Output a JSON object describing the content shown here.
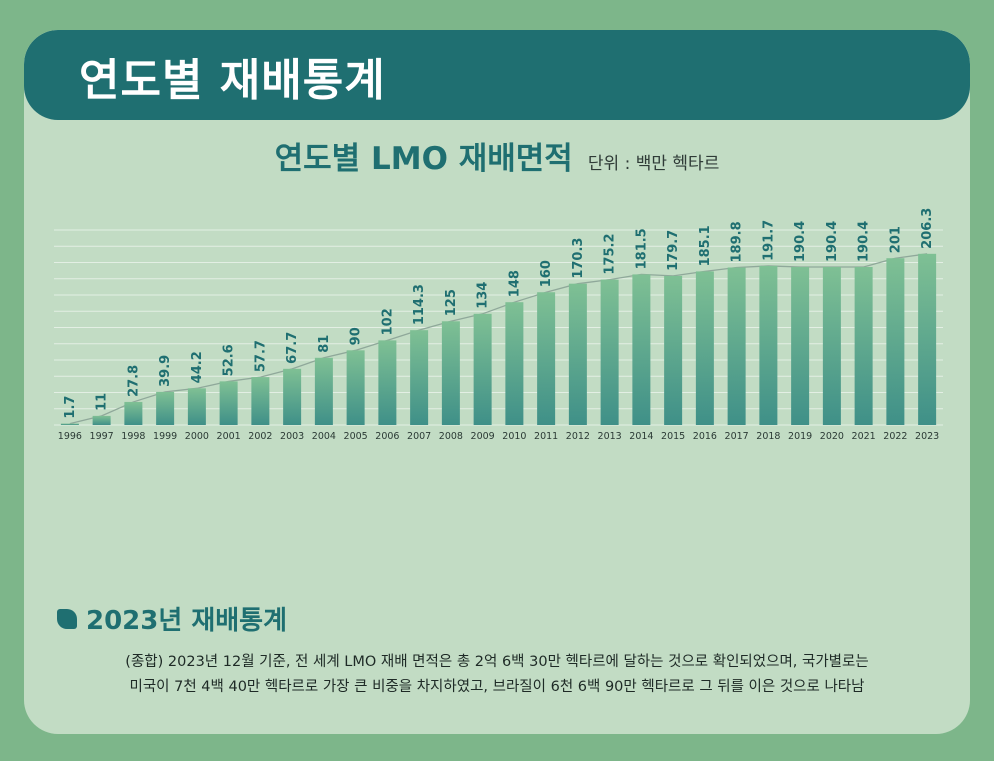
{
  "header": {
    "title": "연도별 재배통계"
  },
  "section": {
    "title": "2023년 재배통계",
    "description": [
      "(종합) 2023년 12월 기준, 전 세계 LMO 재배 면적은 총 2억 6백 30만 헥타르에 달하는 것으로 확인되었으며, 국가별로는",
      "미국이 7천 4백 40만 헥타르로 가장 큰 비중을 차지하였고, 브라질이 6천 6백 90만 헥타르로 그 뒤를 이은 것으로 나타남"
    ]
  },
  "colors": {
    "header_bg": "#1f6f71",
    "card_bg": "#c2dcc4",
    "bar_top": "#7fc094",
    "bar_bottom": "#3f9088",
    "label": "#1f6f71",
    "trend_line": "#8fa89a"
  },
  "chart_data": {
    "type": "bar",
    "title": "연도별 LMO 재배면적",
    "unit": "단위 : 백만 헥타르",
    "categories": [
      "1996",
      "1997",
      "1998",
      "1999",
      "2000",
      "2001",
      "2002",
      "2003",
      "2004",
      "2005",
      "2006",
      "2007",
      "2008",
      "2009",
      "2010",
      "2011",
      "2012",
      "2013",
      "2014",
      "2015",
      "2016",
      "2017",
      "2018",
      "2019",
      "2020",
      "2021",
      "2022",
      "2023"
    ],
    "values": [
      1.7,
      11,
      27.8,
      39.9,
      44.2,
      52.6,
      57.7,
      67.7,
      81,
      90,
      102,
      114.3,
      125,
      134,
      148,
      160,
      170.3,
      175.2,
      181.5,
      179.7,
      185.1,
      189.8,
      191.7,
      190.4,
      190.4,
      190.4,
      201,
      206.3
    ],
    "value_labels": [
      "1.7",
      "11",
      "27.8",
      "39.9",
      "44.2",
      "52.6",
      "57.7",
      "67.7",
      "81",
      "90",
      "102",
      "114.3",
      "125",
      "134",
      "148",
      "160",
      "170.3",
      "175.2",
      "181.5",
      "179.7",
      "185.1",
      "189.8",
      "191.7",
      "190.4",
      "190.4",
      "190.4",
      "201",
      "206.3"
    ],
    "ylim": [
      0,
      235
    ],
    "grid": true,
    "trend_line": true
  }
}
